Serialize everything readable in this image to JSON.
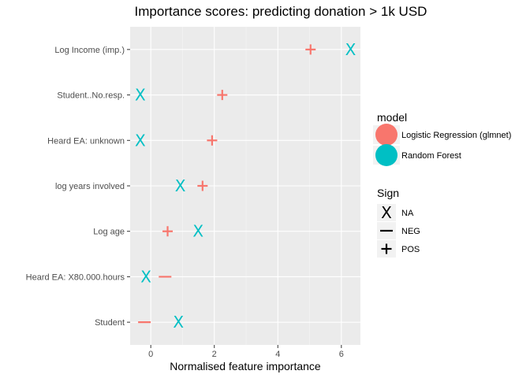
{
  "chart_data": {
    "type": "scatter",
    "title": "Importance scores: predicting donation > 1k USD",
    "xlabel": "Normalised feature importance",
    "ylabel": "",
    "xlim": [
      -0.65,
      6.6
    ],
    "x_ticks": [
      0,
      2,
      4,
      6
    ],
    "grid": true,
    "categories": [
      "Log Income (imp.)",
      "Student..No.resp.",
      "Heard EA: unknown",
      "log years involved",
      "Log age",
      "Heard EA: X80.000.hours",
      "Student"
    ],
    "series": [
      {
        "name": "Logistic Regression (glmnet)",
        "color": "#F8766D",
        "points": [
          {
            "category": "Log Income (imp.)",
            "x": 5.03,
            "sign": "POS"
          },
          {
            "category": "Student..No.resp.",
            "x": 2.25,
            "sign": "POS"
          },
          {
            "category": "Heard EA: unknown",
            "x": 1.93,
            "sign": "POS"
          },
          {
            "category": "log years involved",
            "x": 1.63,
            "sign": "POS"
          },
          {
            "category": "Log age",
            "x": 0.53,
            "sign": "POS"
          },
          {
            "category": "Heard EA: X80.000.hours",
            "x": 0.45,
            "sign": "NEG"
          },
          {
            "category": "Student",
            "x": -0.2,
            "sign": "NEG"
          }
        ]
      },
      {
        "name": "Random Forest",
        "color": "#00BFC4",
        "points": [
          {
            "category": "Log Income (imp.)",
            "x": 6.29,
            "sign": "NA"
          },
          {
            "category": "Student..No.resp.",
            "x": -0.33,
            "sign": "NA"
          },
          {
            "category": "Heard EA: unknown",
            "x": -0.33,
            "sign": "NA"
          },
          {
            "category": "log years involved",
            "x": 0.93,
            "sign": "NA"
          },
          {
            "category": "Log age",
            "x": 1.49,
            "sign": "NA"
          },
          {
            "category": "Heard EA: X80.000.hours",
            "x": -0.15,
            "sign": "NA"
          },
          {
            "category": "Student",
            "x": 0.87,
            "sign": "NA"
          }
        ]
      }
    ],
    "legend": {
      "placement": "right",
      "model": {
        "title": "model",
        "entries": [
          {
            "label": "Logistic Regression (glmnet)",
            "color": "#F8766D"
          },
          {
            "label": "Random Forest",
            "color": "#00BFC4"
          }
        ]
      },
      "sign": {
        "title": "Sign",
        "entries": [
          {
            "label": "NA",
            "symbol": "x-mark-icon"
          },
          {
            "label": "NEG",
            "symbol": "minus-icon"
          },
          {
            "label": "POS",
            "symbol": "plus-icon"
          }
        ]
      }
    }
  }
}
